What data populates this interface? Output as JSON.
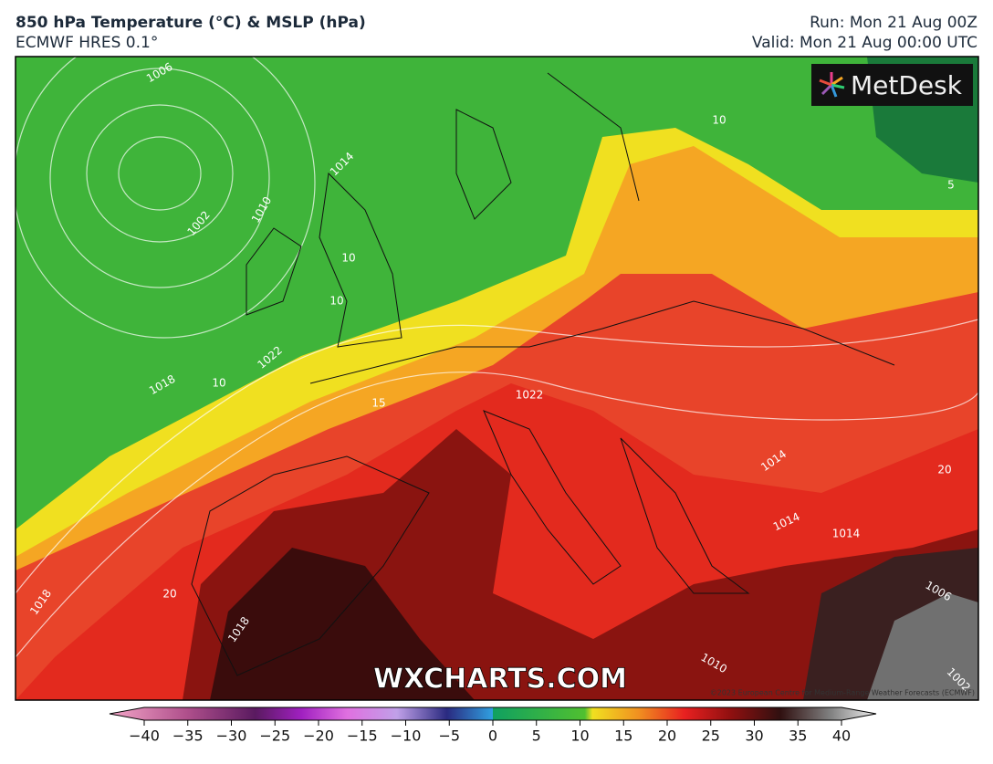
{
  "header": {
    "title": "850 hPa Temperature (°C) & MSLP (hPa)",
    "subtitle": "ECMWF HRES 0.1°",
    "run": "Run: Mon 21 Aug 00Z",
    "valid": "Valid: Mon 21 Aug 00:00 UTC"
  },
  "logo": "MetDesk",
  "watermark": "WXCHARTS.COM",
  "copyright": "©2023 European Centre for Medium-Range Weather Forecasts (ECMWF)",
  "contour_labels": [
    "1006",
    "1002",
    "1010",
    "1014",
    "1018",
    "1022",
    "10",
    "10",
    "10",
    "15",
    "1022",
    "1014",
    "1014",
    "1014",
    "20",
    "1018",
    "1018",
    "1010",
    "1006",
    "1002",
    "10",
    "5",
    "20"
  ],
  "colorbar": {
    "ticks": [
      {
        "value": -40,
        "label": "−40"
      },
      {
        "value": -35,
        "label": "−35"
      },
      {
        "value": -30,
        "label": "−30"
      },
      {
        "value": -25,
        "label": "−25"
      },
      {
        "value": -20,
        "label": "−20"
      },
      {
        "value": -15,
        "label": "−15"
      },
      {
        "value": -10,
        "label": "−10"
      },
      {
        "value": -5,
        "label": "−5"
      },
      0,
      5,
      10,
      15,
      20,
      25,
      30,
      35,
      40
    ]
  }
}
